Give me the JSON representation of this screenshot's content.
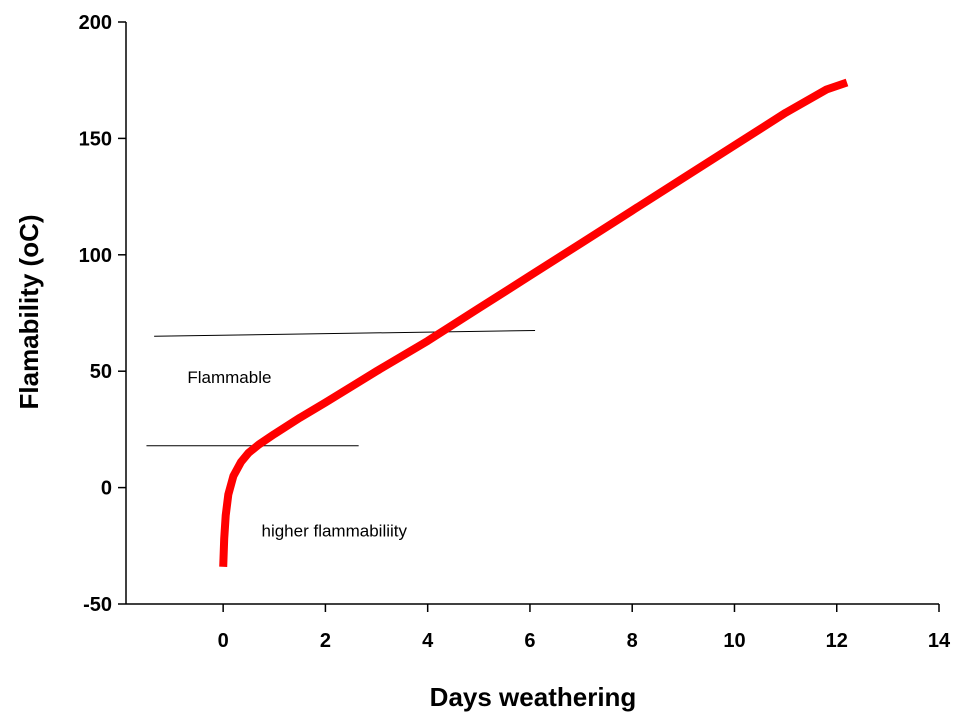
{
  "chart_data": {
    "type": "line",
    "xlabel": "Days weathering",
    "ylabel": "Flamability  (oC)",
    "xlim": [
      -1.9,
      14
    ],
    "ylim": [
      -50,
      200
    ],
    "x_ticks": [
      0,
      2,
      4,
      6,
      8,
      10,
      12,
      14
    ],
    "y_ticks": [
      -50,
      0,
      50,
      100,
      150,
      200
    ],
    "grid": false,
    "legend": "none",
    "series": [
      {
        "color": "#ff0000",
        "points": [
          [
            0.0,
            -34
          ],
          [
            0.02,
            -22
          ],
          [
            0.05,
            -12
          ],
          [
            0.1,
            -3
          ],
          [
            0.2,
            5
          ],
          [
            0.35,
            11
          ],
          [
            0.5,
            15
          ],
          [
            0.7,
            18.5
          ],
          [
            1.0,
            23
          ],
          [
            1.5,
            30
          ],
          [
            2.0,
            36.5
          ],
          [
            3.0,
            50
          ],
          [
            4.0,
            63
          ],
          [
            5.0,
            77
          ],
          [
            6.0,
            91
          ],
          [
            7.0,
            105
          ],
          [
            8.0,
            119
          ],
          [
            9.0,
            133
          ],
          [
            10.0,
            147
          ],
          [
            11.0,
            161
          ],
          [
            11.8,
            171
          ],
          [
            12.2,
            174
          ]
        ]
      }
    ],
    "reference_lines": [
      {
        "x": [
          -1.35,
          6.1
        ],
        "y": [
          65,
          67.5
        ],
        "color": "#000000"
      },
      {
        "x": [
          -1.5,
          2.65
        ],
        "y": [
          18,
          18
        ],
        "color": "#000000"
      }
    ],
    "annotations": [
      {
        "text": "Flammable",
        "x": -0.7,
        "y": 45
      },
      {
        "text": "higher flammabiliity",
        "x": 0.75,
        "y": -21
      }
    ]
  }
}
